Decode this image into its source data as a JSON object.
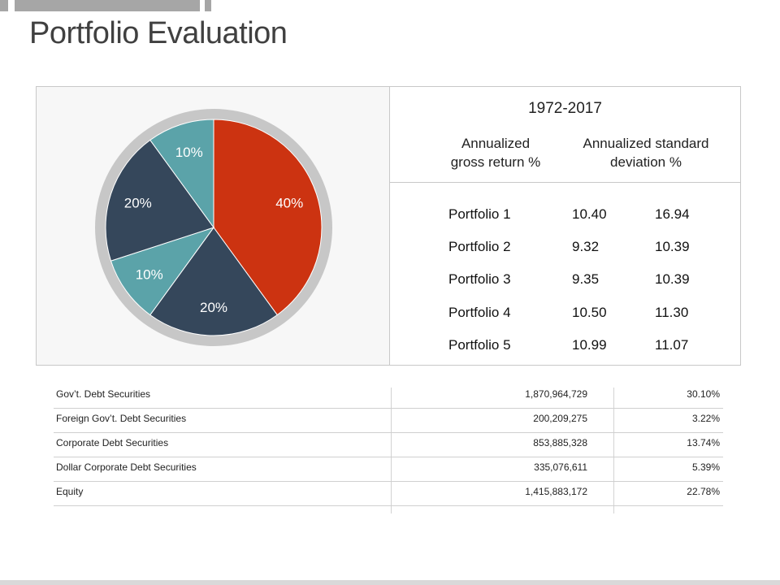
{
  "slide_title": "Portfolio Evaluation",
  "colors": {
    "red": "#cc3311",
    "navy": "#35475b",
    "teal": "#5ba3a9",
    "ring": "#c7c7c7",
    "title": "#404040"
  },
  "chart_data": [
    {
      "type": "pie",
      "slices": [
        {
          "label": "40%",
          "value": 40,
          "color": "#cc3311"
        },
        {
          "label": "20%",
          "value": 20,
          "color": "#35475b"
        },
        {
          "label": "10%",
          "value": 10,
          "color": "#5ba3a9"
        },
        {
          "label": "20%",
          "value": 20,
          "color": "#35475b"
        },
        {
          "label": "10%",
          "value": 10,
          "color": "#5ba3a9"
        }
      ]
    },
    {
      "type": "table",
      "period": "1972-2017",
      "columns": [
        "Annualized gross return %",
        "Annualized standard deviation %"
      ],
      "column_lines": [
        [
          "Annualized",
          "gross return %"
        ],
        [
          "Annualized standard",
          "deviation %"
        ]
      ],
      "rows": [
        {
          "name": "Portfolio 1",
          "return": "10.40",
          "std_dev": "16.94"
        },
        {
          "name": "Portfolio 2",
          "return": "9.32",
          "std_dev": "10.39"
        },
        {
          "name": "Portfolio 3",
          "return": "9.35",
          "std_dev": "10.39"
        },
        {
          "name": "Portfolio 4",
          "return": "10.50",
          "std_dev": "11.30"
        },
        {
          "name": "Portfolio 5",
          "return": "10.99",
          "std_dev": "11.07"
        }
      ]
    },
    {
      "type": "table",
      "rows": [
        {
          "name": "Gov’t. Debt Securities",
          "amount": "1,870,964,729",
          "percent": "30.10%"
        },
        {
          "name": "Foreign Gov’t. Debt Securities",
          "amount": "200,209,275",
          "percent": "3.22%"
        },
        {
          "name": "Corporate Debt Securities",
          "amount": "853,885,328",
          "percent": "13.74%"
        },
        {
          "name": "Dollar Corporate Debt Securities",
          "amount": "335,076,611",
          "percent": "5.39%"
        },
        {
          "name": "Equity",
          "amount": "1,415,883,172",
          "percent": "22.78%"
        }
      ]
    }
  ]
}
